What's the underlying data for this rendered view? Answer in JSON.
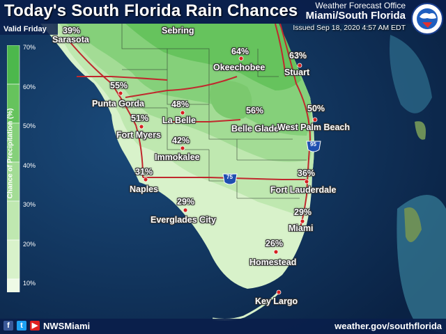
{
  "header": {
    "title": "Today's South Florida Rain Chances",
    "office": "Weather Forecast Office",
    "region": "Miami/South Florida",
    "issued": "Issued Sep 18, 2020 4:57 AM EDT",
    "valid": "Valid Friday"
  },
  "legend": {
    "title": "Chance of Precipitation (%)",
    "ticks": [
      "70%",
      "60%",
      "50%",
      "40%",
      "30%",
      "20%",
      "10%"
    ],
    "colors": [
      "#4cb84c",
      "#66c35d",
      "#85d07a",
      "#a3dc95",
      "#bfe8b0",
      "#d8f2ca",
      "#eefae6"
    ]
  },
  "map": {
    "ocean_color": "#0d2a4e",
    "highway_color": "#c0282d",
    "interstate_labels": [
      "75",
      "95"
    ]
  },
  "cities": [
    {
      "name": "Sarasota",
      "pct": "39%"
    },
    {
      "name": "Sebring",
      "pct": ""
    },
    {
      "name": "Okeechobee",
      "pct": "64%"
    },
    {
      "name": "Stuart",
      "pct": "63%"
    },
    {
      "name": "Punta Gorda",
      "pct": "55%"
    },
    {
      "name": "La Belle",
      "pct": "48%"
    },
    {
      "name": "Belle Glade",
      "pct": "56%"
    },
    {
      "name": "West Palm Beach",
      "pct": "50%"
    },
    {
      "name": "Fort Myers",
      "pct": "51%"
    },
    {
      "name": "Immokalee",
      "pct": "42%"
    },
    {
      "name": "Naples",
      "pct": "31%"
    },
    {
      "name": "Fort Lauderdale",
      "pct": "36%"
    },
    {
      "name": "Everglades City",
      "pct": "29%"
    },
    {
      "name": "Miami",
      "pct": "29%"
    },
    {
      "name": "Homestead",
      "pct": "26%"
    },
    {
      "name": "Key Largo",
      "pct": ""
    }
  ],
  "footer": {
    "handle": "NWSMiami",
    "website": "weather.gov/southflorida",
    "social_icons": [
      "facebook-icon",
      "twitter-icon",
      "youtube-icon"
    ]
  }
}
